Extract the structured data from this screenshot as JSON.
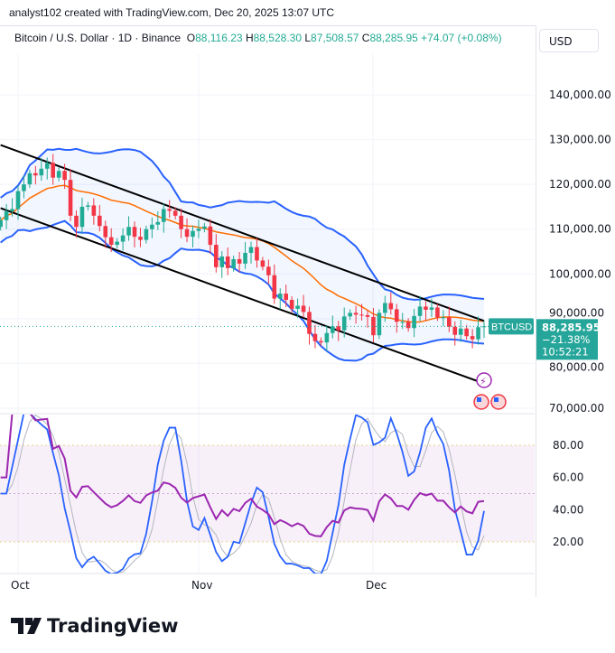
{
  "header": {
    "credit": "analyst102 created with TradingView.com, Dec 20, 2025 13:07 UTC"
  },
  "symbol": {
    "name": "Bitcoin / U.S. Dollar · 1D · Binance",
    "o_label": "O",
    "o": "88,116.23",
    "h_label": "H",
    "h": "88,528.30",
    "l_label": "L",
    "l": "87,508.57",
    "c_label": "C",
    "c": "88,285.95",
    "change": "+74.07 (+0.08%)"
  },
  "currency": "USD",
  "price_tag": {
    "ticker": "BTCUSD",
    "price": "88,285.95",
    "pct": "−21.38%",
    "countdown": "10:52:21"
  },
  "brand": "TradingView",
  "colors": {
    "up": "#22ab94",
    "down": "#f23645",
    "bb": "#2962ff",
    "basis": "#ff6d00",
    "rsi": "#9c27b0",
    "stoch_k": "#2962ff",
    "stoch_d": "#b2b5be",
    "tag": "#26a69a"
  },
  "chart_data": {
    "type": "candlestick",
    "interval": "1D",
    "start_date": "2025-09-28",
    "closes_k": [
      112,
      114,
      114.5,
      118.5,
      120,
      122.5,
      122,
      123.5,
      124.8,
      121.5,
      123,
      121,
      113,
      110.5,
      115,
      115.3,
      113,
      110.7,
      108.2,
      106.5,
      107.2,
      108.6,
      110.5,
      108.3,
      107.6,
      110,
      111,
      111.6,
      114.5,
      114.1,
      113,
      110,
      108.3,
      109.6,
      110.1,
      110.6,
      106.5,
      101.5,
      103.9,
      101.3,
      103.3,
      102.3,
      104.7,
      106,
      103,
      101.6,
      99.7,
      94.5,
      95.6,
      94.2,
      92.2,
      92.9,
      91.5,
      86.6,
      85,
      84.7,
      86.8,
      88.3,
      87.4,
      90.5,
      91.3,
      90.9,
      90.8,
      90.4,
      86.3,
      91.3,
      93.5,
      92.1,
      89.3,
      89.3,
      87.9,
      90.6,
      92.7,
      92,
      92.5,
      90.3,
      90.3,
      88.2,
      86.4,
      87.8,
      86.1,
      85.4,
      88.1,
      88.29
    ],
    "x_ticks": [
      "Oct",
      "Nov",
      "Dec"
    ],
    "y_ticks": [
      "140,000.00",
      "130,000.00",
      "120,000.00",
      "110,000.00",
      "100,000.00",
      "90,000.00",
      "80,000.00",
      "70,000.00"
    ],
    "ylim": [
      70000,
      140000
    ],
    "trendlines": [
      {
        "from": [
          "2025-09-28",
          128800
        ],
        "to": [
          "2025-12-20",
          89500
        ]
      },
      {
        "from": [
          "2025-09-28",
          114700
        ],
        "to": [
          "2025-12-19",
          76000
        ]
      }
    ],
    "indicators": [
      "Bollinger Bands",
      "RSI",
      "Stochastic RSI"
    ],
    "osc_ticks": [
      "80.00",
      "60.00",
      "40.00",
      "20.00"
    ],
    "osc_levels": [
      80,
      20
    ]
  }
}
